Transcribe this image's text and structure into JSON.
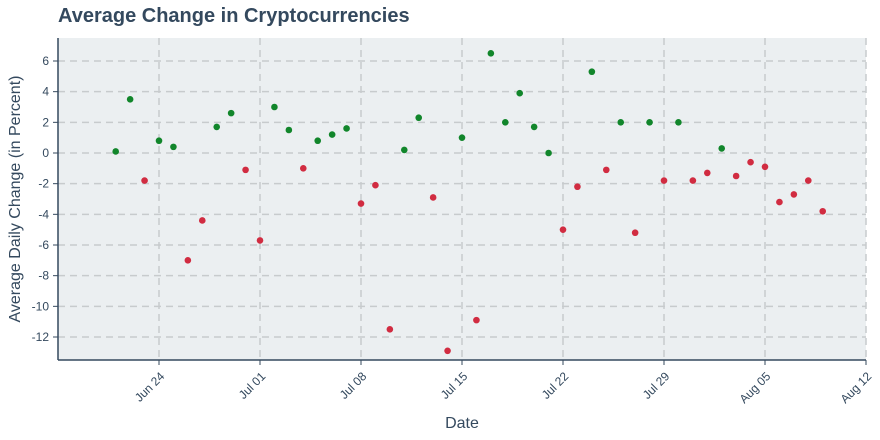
{
  "chart_data": {
    "type": "scatter",
    "title": "Average Change in Cryptocurrencies",
    "xlabel": "Date",
    "ylabel": "Average Daily Change (in Percent)",
    "x_ticks": [
      "Jun 24",
      "Jul 01",
      "Jul 08",
      "Jul 15",
      "Jul 22",
      "Jul 29",
      "Aug 05",
      "Aug 12"
    ],
    "y_ticks": [
      6,
      4,
      2,
      0,
      -2,
      -4,
      -6,
      -8,
      -10,
      -12
    ],
    "xlim": [
      "2024-06-17",
      "2024-08-12"
    ],
    "ylim": [
      -13.5,
      7.5
    ],
    "grid": true,
    "colors": {
      "positive": "#11862b",
      "negative": "#d12c41",
      "plot_background": "#ebeff1",
      "grid": "#c7cbcd",
      "axis": "#34495e",
      "text": "#34495e"
    },
    "points": [
      {
        "x": "2024-06-21",
        "y": 0.1
      },
      {
        "x": "2024-06-22",
        "y": 3.5
      },
      {
        "x": "2024-06-23",
        "y": -1.8
      },
      {
        "x": "2024-06-24",
        "y": 0.8
      },
      {
        "x": "2024-06-25",
        "y": 0.4
      },
      {
        "x": "2024-06-26",
        "y": -7.0
      },
      {
        "x": "2024-06-27",
        "y": -4.4
      },
      {
        "x": "2024-06-28",
        "y": 1.7
      },
      {
        "x": "2024-06-29",
        "y": 2.6
      },
      {
        "x": "2024-06-30",
        "y": -1.1
      },
      {
        "x": "2024-07-01",
        "y": -5.7
      },
      {
        "x": "2024-07-02",
        "y": 3.0
      },
      {
        "x": "2024-07-03",
        "y": 1.5
      },
      {
        "x": "2024-07-04",
        "y": -1.0
      },
      {
        "x": "2024-07-05",
        "y": 0.8
      },
      {
        "x": "2024-07-06",
        "y": 1.2
      },
      {
        "x": "2024-07-07",
        "y": 1.6
      },
      {
        "x": "2024-07-08",
        "y": -3.3
      },
      {
        "x": "2024-07-09",
        "y": -2.1
      },
      {
        "x": "2024-07-10",
        "y": -11.5
      },
      {
        "x": "2024-07-11",
        "y": 0.2
      },
      {
        "x": "2024-07-12",
        "y": 2.3
      },
      {
        "x": "2024-07-13",
        "y": -2.9
      },
      {
        "x": "2024-07-14",
        "y": -12.9
      },
      {
        "x": "2024-07-15",
        "y": 1.0
      },
      {
        "x": "2024-07-16",
        "y": -10.9
      },
      {
        "x": "2024-07-17",
        "y": 6.5
      },
      {
        "x": "2024-07-18",
        "y": 2.0
      },
      {
        "x": "2024-07-19",
        "y": 3.9
      },
      {
        "x": "2024-07-20",
        "y": 1.7
      },
      {
        "x": "2024-07-21",
        "y": 0.0
      },
      {
        "x": "2024-07-22",
        "y": -5.0
      },
      {
        "x": "2024-07-23",
        "y": -2.2
      },
      {
        "x": "2024-07-24",
        "y": 5.3
      },
      {
        "x": "2024-07-25",
        "y": -1.1
      },
      {
        "x": "2024-07-26",
        "y": 2.0
      },
      {
        "x": "2024-07-27",
        "y": -5.2
      },
      {
        "x": "2024-07-28",
        "y": 2.0
      },
      {
        "x": "2024-07-29",
        "y": -1.8
      },
      {
        "x": "2024-07-30",
        "y": 2.0
      },
      {
        "x": "2024-07-31",
        "y": -1.8
      },
      {
        "x": "2024-08-01",
        "y": -1.3
      },
      {
        "x": "2024-08-02",
        "y": 0.3
      },
      {
        "x": "2024-08-03",
        "y": -1.5
      },
      {
        "x": "2024-08-04",
        "y": -0.6
      },
      {
        "x": "2024-08-05",
        "y": -0.9
      },
      {
        "x": "2024-08-06",
        "y": -3.2
      },
      {
        "x": "2024-08-07",
        "y": -2.7
      },
      {
        "x": "2024-08-08",
        "y": -1.8
      },
      {
        "x": "2024-08-09",
        "y": -3.8
      }
    ]
  }
}
